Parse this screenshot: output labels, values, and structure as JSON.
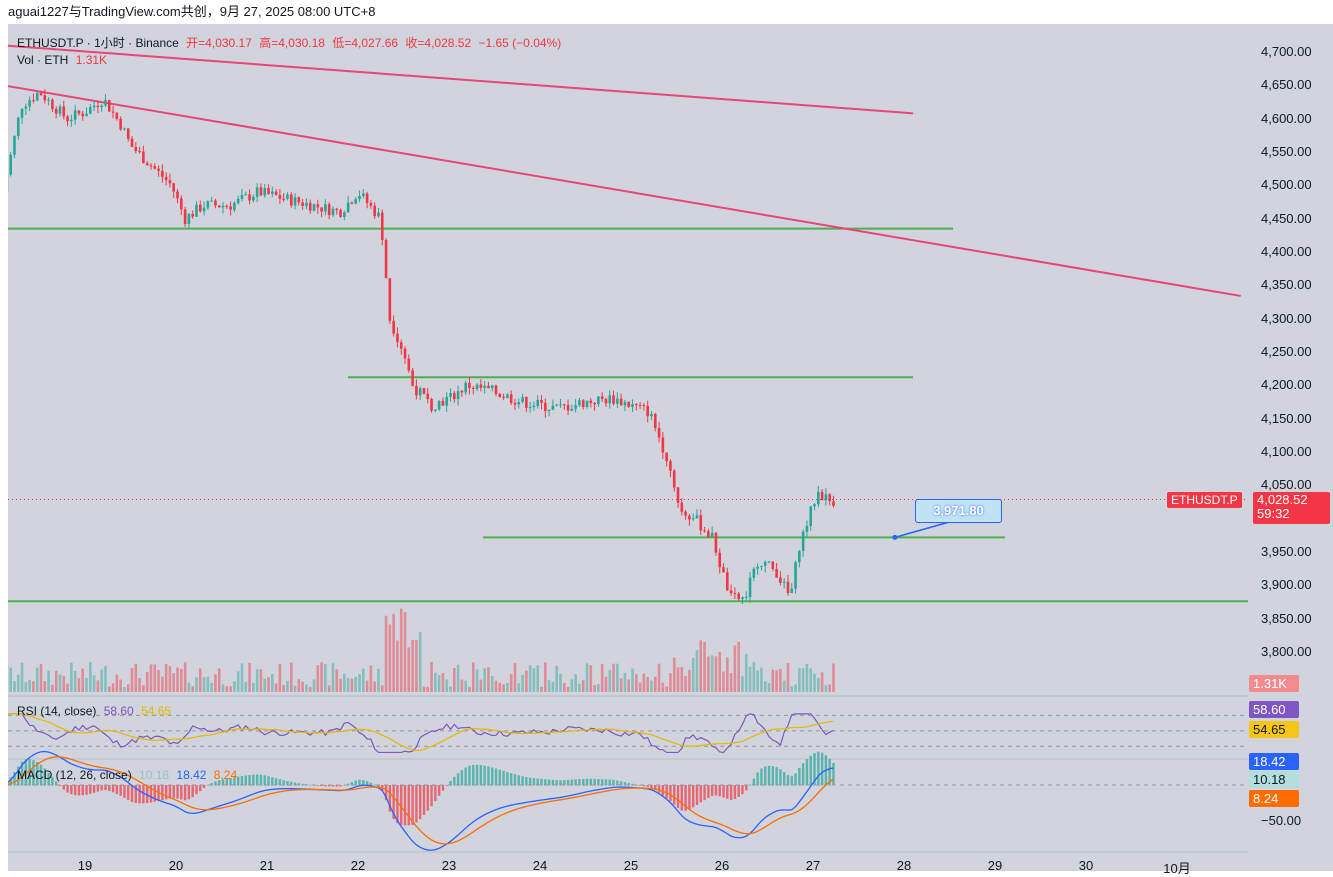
{
  "header": {
    "share_text": "aguai1227与TradingView.com共创，9月 27, 2025 08:00 UTC+8"
  },
  "legend": {
    "symbol": "ETHUSDT.P · 1小时 · Binance",
    "open": "开=4,030.17",
    "high": "高=4,030.18",
    "low": "低=4,027.66",
    "close": "收=4,028.52",
    "change": "−1.65 (−0.04%)",
    "vol_label": "Vol · ETH",
    "vol_value": "1.31K",
    "rsi_label": "RSI (14, close)",
    "rsi_value": "58.60",
    "rsi_ma": "54.65",
    "macd_label": "MACD (12, 26, close)",
    "macd_hist": "10.18",
    "macd_line": "18.42",
    "macd_signal": "8.24"
  },
  "price_scale": {
    "labels": [
      "4,700.00",
      "4,650.00",
      "4,600.00",
      "4,550.00",
      "4,500.00",
      "4,450.00",
      "4,400.00",
      "4,350.00",
      "4,300.00",
      "4,250.00",
      "4,200.00",
      "4,150.00",
      "4,100.00",
      "4,050.00",
      "3,950.00",
      "3,900.00",
      "3,850.00",
      "3,800.00"
    ],
    "values": [
      4700,
      4650,
      4600,
      4550,
      4500,
      4450,
      4400,
      4350,
      4300,
      4250,
      4200,
      4150,
      4100,
      4050,
      3950,
      3900,
      3850,
      3800
    ],
    "last_price_symbol": "ETHUSDT.P",
    "last_price": "4,028.52",
    "countdown": "59:32",
    "vol_tag": "1.31K",
    "rsi_tag": "58.60",
    "rsi_ma_tag": "54.65",
    "macd_line_tag": "18.42",
    "macd_hist_tag": "10.18",
    "macd_signal_tag": "8.24",
    "macd_scale_label": "−50.00",
    "callout": "3,971.80"
  },
  "time_scale": {
    "labels": [
      "19",
      "20",
      "21",
      "22",
      "23",
      "24",
      "25",
      "26",
      "27",
      "28",
      "29",
      "30",
      "10月"
    ]
  },
  "colors": {
    "up": "#26a69a",
    "down": "#f23645",
    "trendline": "#e8457a",
    "level": "#4caf50",
    "background": "#d1d4dc"
  },
  "chart_data": {
    "type": "candlestick",
    "symbol": "ETHUSDT.P",
    "interval": "1小时",
    "exchange": "Binance",
    "ylim": [
      3760,
      4730
    ],
    "last_close": 4028.52,
    "horizontal_levels": [
      4435,
      4212,
      3971.8,
      3876
    ],
    "trendlines": [
      {
        "from": [
          "18.1",
          4710
        ],
        "to": [
          "28.1",
          4608
        ]
      },
      {
        "from": [
          "18.1",
          4650
        ],
        "to": [
          "31.7",
          4334
        ]
      }
    ],
    "price_path": [
      [
        "18.1",
        4490
      ],
      [
        "18.3",
        4620
      ],
      [
        "18.5",
        4640
      ],
      [
        "18.8",
        4600
      ],
      [
        "19.0",
        4610
      ],
      [
        "19.2",
        4630
      ],
      [
        "19.4",
        4590
      ],
      [
        "19.5",
        4560
      ],
      [
        "19.8",
        4520
      ],
      [
        "19.95",
        4500
      ],
      [
        "20.1",
        4450
      ],
      [
        "20.3",
        4470
      ],
      [
        "20.6",
        4470
      ],
      [
        "20.9",
        4490
      ],
      [
        "21.2",
        4480
      ],
      [
        "21.5",
        4470
      ],
      [
        "21.8",
        4460
      ],
      [
        "22.0",
        4490
      ],
      [
        "22.25",
        4450
      ],
      [
        "22.35",
        4300
      ],
      [
        "22.5",
        4250
      ],
      [
        "22.6",
        4200
      ],
      [
        "22.8",
        4170
      ],
      [
        "23.0",
        4180
      ],
      [
        "23.2",
        4200
      ],
      [
        "23.5",
        4190
      ],
      [
        "23.8",
        4175
      ],
      [
        "24.2",
        4165
      ],
      [
        "24.5",
        4175
      ],
      [
        "24.8",
        4180
      ],
      [
        "25.0",
        4170
      ],
      [
        "25.2",
        4160
      ],
      [
        "25.4",
        4090
      ],
      [
        "25.55",
        4010
      ],
      [
        "25.7",
        4000
      ],
      [
        "25.9",
        3970
      ],
      [
        "26.0",
        3920
      ],
      [
        "26.1",
        3880
      ],
      [
        "26.25",
        3880
      ],
      [
        "26.4",
        3940
      ],
      [
        "26.6",
        3920
      ],
      [
        "26.75",
        3880
      ],
      [
        "26.85",
        3960
      ],
      [
        "26.95",
        4000
      ],
      [
        "27.05",
        4040
      ],
      [
        "27.2",
        4025
      ],
      [
        "27.25",
        4028.52
      ]
    ],
    "rsi": {
      "value": 58.6,
      "ma": 54.65,
      "bands": [
        70,
        50,
        30
      ]
    },
    "macd": {
      "line": 18.42,
      "signal": 8.24,
      "histogram": 10.18
    }
  }
}
